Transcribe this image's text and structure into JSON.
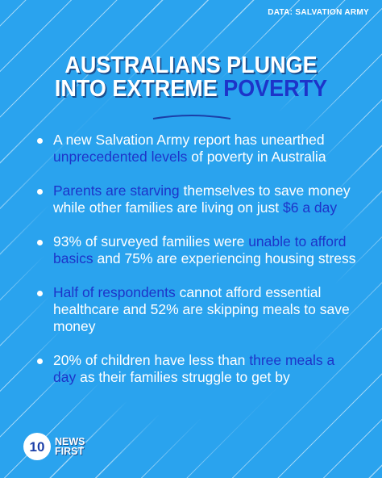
{
  "source_label": "DATA: SALVATION ARMY",
  "headline": {
    "line1": "AUSTRALIANS PLUNGE",
    "line2_plain": "INTO EXTREME ",
    "line2_highlight": "POVERTY"
  },
  "colors": {
    "background": "#2aa3ee",
    "highlight_text": "#1d34c9",
    "body_text": "#ffffff"
  },
  "bullets": [
    {
      "pre": "A new Salvation Army report has unearthed ",
      "hl": "unprecedented levels",
      "post": " of poverty in Australia"
    },
    {
      "pre": "",
      "hl": "Parents are starving",
      "post": " themselves to save money while other families are living on just ",
      "hl2": "$6 a day",
      "post2": ""
    },
    {
      "pre": "93% of surveyed families were ",
      "hl": "unable to afford basics",
      "post": " and 75% are experiencing housing stress"
    },
    {
      "pre": "",
      "hl": "Half of respondents",
      "post": " cannot afford essential healthcare and 52% are skipping meals to save money"
    },
    {
      "pre": "20% of children have less than ",
      "hl": "three meals a day",
      "post": " as their families struggle to get by"
    }
  ],
  "logo": {
    "mark_text": "10",
    "line1": "NEWS",
    "line2": "FIRST"
  }
}
